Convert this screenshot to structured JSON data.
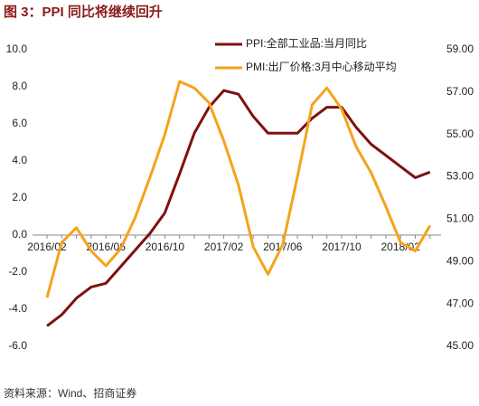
{
  "chart_data": {
    "type": "line",
    "title": "图 3：PPI 同比将继续回升",
    "source": "资料来源：Wind、招商证券",
    "categories": [
      "2016/02",
      null,
      null,
      null,
      "2016/06",
      null,
      null,
      null,
      "2016/10",
      null,
      null,
      null,
      "2017/02",
      null,
      null,
      null,
      "2017/06",
      null,
      null,
      null,
      "2017/10",
      null,
      null,
      null,
      "2018/02",
      null,
      null
    ],
    "series": [
      {
        "name": "PPI:全部工业品:当月同比",
        "color": "#7f1010",
        "values": [
          -4.9,
          -4.3,
          -3.4,
          -2.8,
          -2.6,
          -1.7,
          -0.8,
          0.1,
          1.2,
          3.3,
          5.5,
          6.9,
          7.8,
          7.6,
          6.4,
          5.5,
          5.5,
          5.5,
          6.3,
          6.9,
          6.9,
          5.8,
          4.9,
          4.3,
          3.7,
          3.1,
          3.4
        ]
      },
      {
        "name": "PMI:出厂价格:3月中心移动平均",
        "color": "#f5a31a",
        "axis": "y2",
        "values": [
          47.3,
          49.9,
          50.6,
          49.5,
          48.8,
          49.6,
          51.1,
          53.0,
          55.0,
          57.5,
          57.2,
          56.5,
          54.7,
          52.6,
          49.7,
          48.4,
          49.8,
          53.0,
          56.4,
          57.2,
          56.2,
          54.4,
          53.2,
          51.6,
          49.9,
          49.5,
          50.7
        ]
      }
    ],
    "ylim": [
      -6,
      10
    ],
    "yticks": [
      {
        "value": -6,
        "label": "-6.0"
      },
      {
        "value": -4,
        "label": "-4.0"
      },
      {
        "value": -2,
        "label": "-2.0"
      },
      {
        "value": 0,
        "label": "0.0"
      },
      {
        "value": 2,
        "label": "2.0"
      },
      {
        "value": 4,
        "label": "4.0"
      },
      {
        "value": 6,
        "label": "6.0"
      },
      {
        "value": 8,
        "label": "8.0"
      },
      {
        "value": 10,
        "label": "10.0"
      }
    ],
    "y2lim": [
      45,
      59
    ],
    "y2ticks": [
      {
        "value": 45,
        "label": "45.00"
      },
      {
        "value": 47,
        "label": "47.00"
      },
      {
        "value": 49,
        "label": "49.00"
      },
      {
        "value": 51,
        "label": "51.00"
      },
      {
        "value": 53,
        "label": "53.00"
      },
      {
        "value": 55,
        "label": "55.00"
      },
      {
        "value": 57,
        "label": "57.00"
      },
      {
        "value": 59,
        "label": "59.00"
      }
    ],
    "grid": false,
    "legend": "top"
  }
}
